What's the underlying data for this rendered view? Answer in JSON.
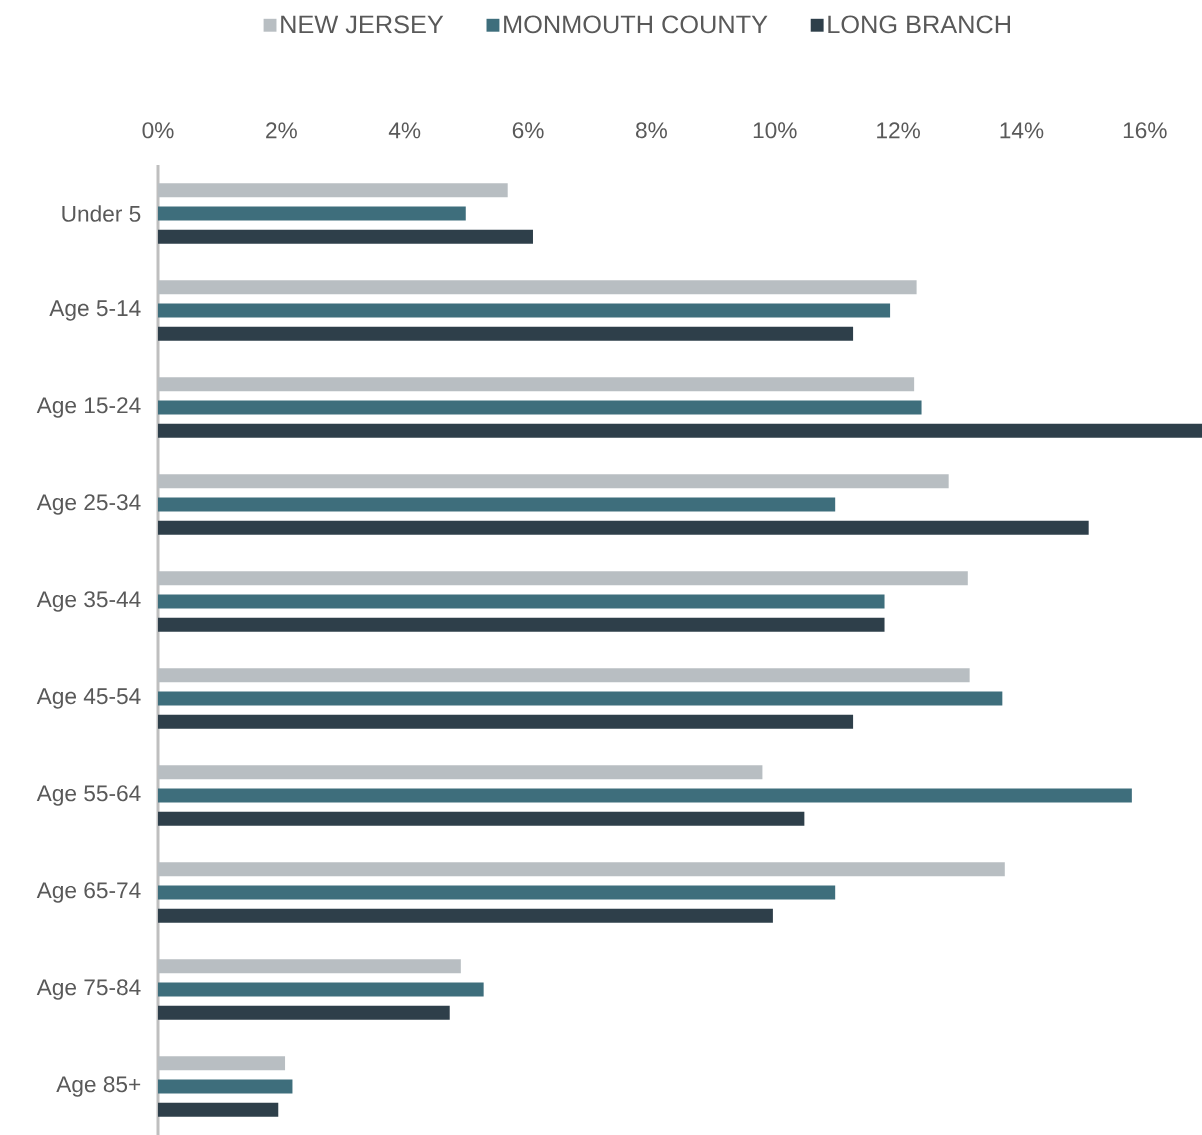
{
  "chart_data": {
    "type": "bar",
    "orientation": "horizontal",
    "categories": [
      "Under 5",
      "Age 5-14",
      "Age 15-24",
      "Age 25-34",
      "Age 35-44",
      "Age 45-54",
      "Age 55-64",
      "Age 65-74",
      "Age 75-84",
      "Age 85+"
    ],
    "series": [
      {
        "name": "NEW JERSEY",
        "color": "#b8bec2",
        "values": [
          5.67,
          12.3,
          12.26,
          12.82,
          13.13,
          13.16,
          9.8,
          13.73,
          4.91,
          2.06
        ]
      },
      {
        "name": "MONMOUTH COUNTY",
        "color": "#3e6e7c",
        "values": [
          4.99,
          11.87,
          12.38,
          10.98,
          11.78,
          13.69,
          15.79,
          10.98,
          5.28,
          2.18
        ]
      },
      {
        "name": "LONG BRANCH",
        "color": "#2e3f4a",
        "values": [
          6.08,
          11.27,
          16.96,
          15.09,
          11.78,
          11.27,
          10.48,
          9.97,
          4.73,
          1.95
        ]
      }
    ],
    "xlim": [
      0,
      16.96
    ],
    "xticks": [
      {
        "value": 0,
        "label": "0%"
      },
      {
        "value": 2,
        "label": "2%"
      },
      {
        "value": 4,
        "label": "4%"
      },
      {
        "value": 6,
        "label": "6%"
      },
      {
        "value": 8,
        "label": "8%"
      },
      {
        "value": 10,
        "label": "10%"
      },
      {
        "value": 12,
        "label": "12%"
      },
      {
        "value": 14,
        "label": "14%"
      },
      {
        "value": 16,
        "label": "16%"
      }
    ],
    "legend": "top",
    "grid": false
  }
}
